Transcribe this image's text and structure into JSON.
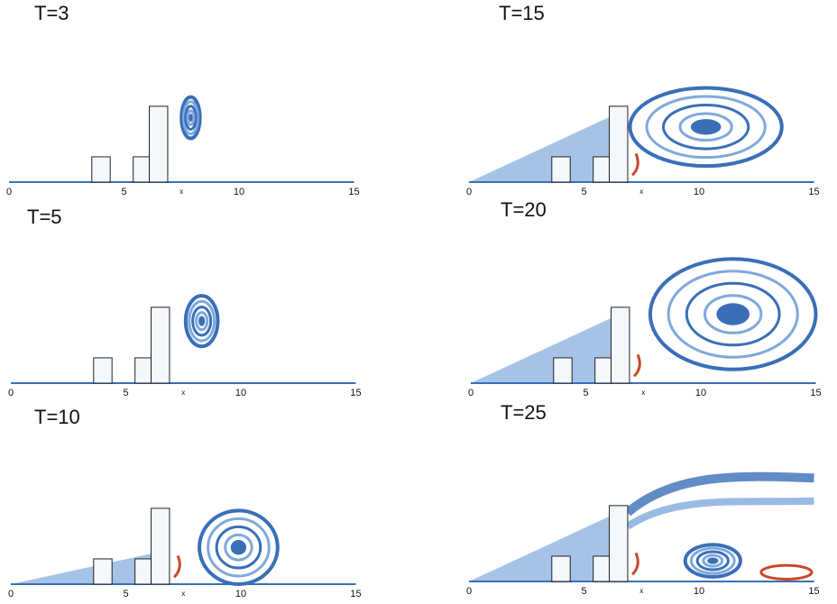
{
  "panels": [
    {
      "title": "T=3",
      "xticks": [
        0,
        5,
        10,
        15
      ],
      "xlabel": "x"
    },
    {
      "title": "T=15",
      "xticks": [
        0,
        5,
        10,
        15
      ],
      "xlabel": "x"
    },
    {
      "title": "T=5",
      "xticks": [
        0,
        5,
        10,
        15
      ],
      "xlabel": "x"
    },
    {
      "title": "T=20",
      "xticks": [
        0,
        5,
        10,
        15
      ],
      "xlabel": "x"
    },
    {
      "title": "T=10",
      "xticks": [
        0,
        5,
        10,
        15
      ],
      "xlabel": "x"
    },
    {
      "title": "T=25",
      "xticks": [
        0,
        5,
        10,
        15
      ],
      "xlabel": "x"
    }
  ]
}
